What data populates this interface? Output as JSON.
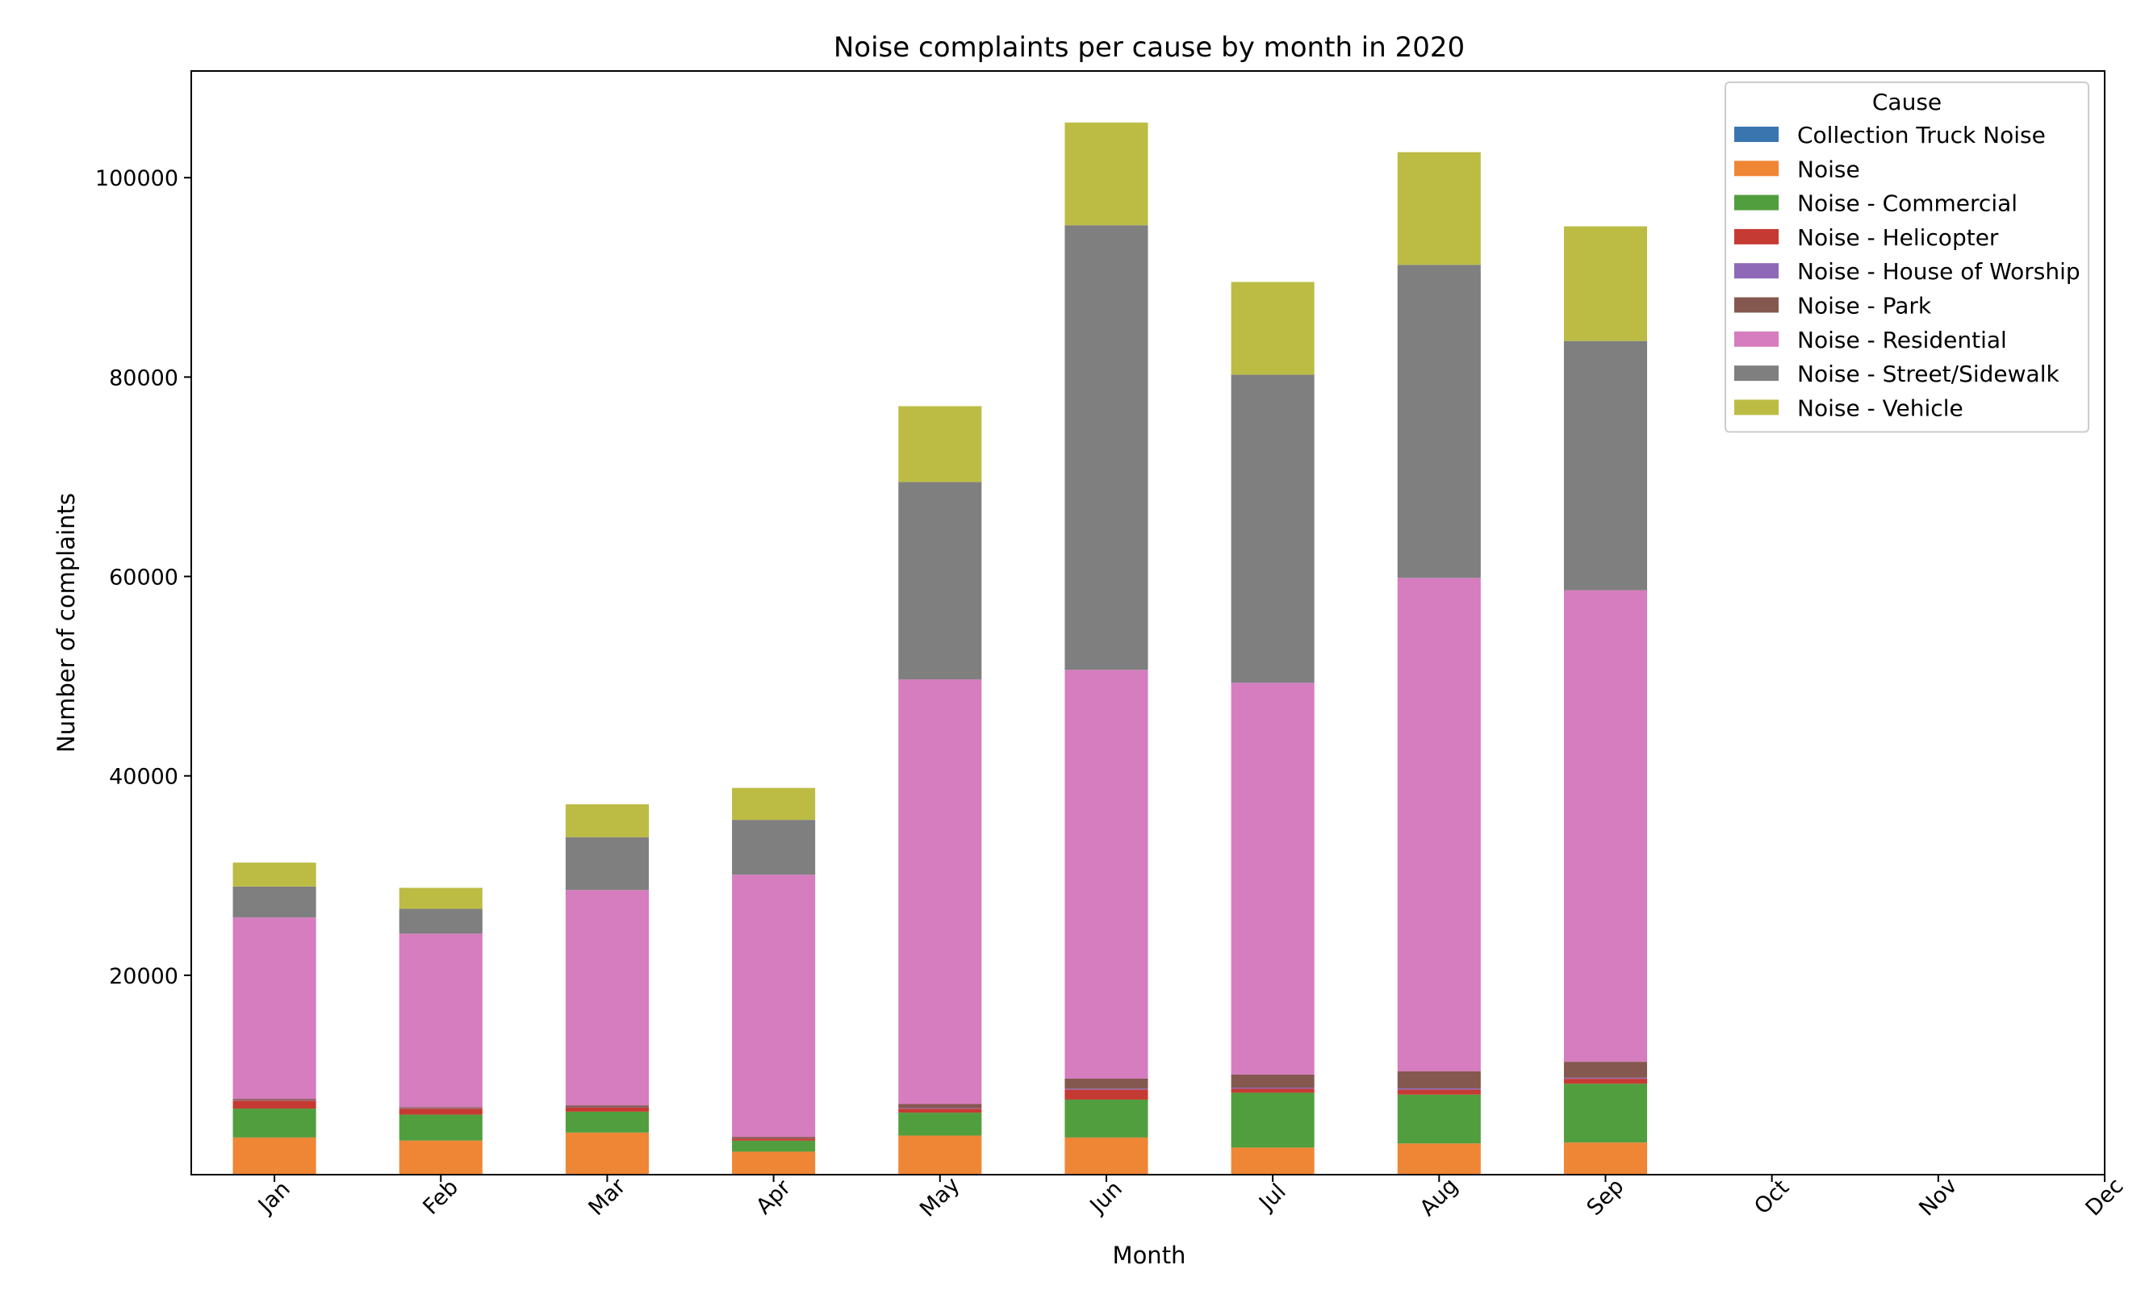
{
  "chart_data": {
    "type": "bar",
    "stacked": true,
    "title": "Noise complaints per cause by month in 2020",
    "xlabel": "Month",
    "ylabel": "Number of complaints",
    "categories": [
      "Jan",
      "Feb",
      "Mar",
      "Apr",
      "May",
      "Jun",
      "Jul",
      "Aug",
      "Sep",
      "Oct",
      "Nov",
      "Dec"
    ],
    "ylim": [
      0,
      110700
    ],
    "yticks": [
      20000,
      40000,
      60000,
      80000,
      100000
    ],
    "ytick_labels": [
      "20000",
      "40000",
      "60000",
      "80000",
      "100000"
    ],
    "legend_title": "Cause",
    "legend_position": "top-right",
    "grid": false,
    "series": [
      {
        "name": "Collection Truck Noise",
        "color": "#3a75af",
        "values": [
          30,
          20,
          20,
          10,
          20,
          30,
          20,
          30,
          20,
          0,
          0,
          0
        ]
      },
      {
        "name": "Noise",
        "color": "#ef8636",
        "values": [
          3700,
          3400,
          4200,
          2300,
          3900,
          3700,
          2700,
          3100,
          3200,
          0,
          0,
          0
        ]
      },
      {
        "name": "Noise - Commercial",
        "color": "#519e3e",
        "values": [
          2900,
          2600,
          2100,
          1100,
          2300,
          3800,
          5500,
          4900,
          5900,
          0,
          0,
          0
        ]
      },
      {
        "name": "Noise - Helicopter",
        "color": "#c53a32",
        "values": [
          800,
          600,
          400,
          200,
          400,
          1000,
          400,
          500,
          500,
          0,
          0,
          0
        ]
      },
      {
        "name": "Noise - House of Worship",
        "color": "#8d69b8",
        "values": [
          40,
          30,
          30,
          10,
          60,
          100,
          120,
          130,
          100,
          0,
          0,
          0
        ]
      },
      {
        "name": "Noise - Park",
        "color": "#84584e",
        "values": [
          130,
          120,
          200,
          170,
          400,
          1000,
          1300,
          1700,
          1600,
          0,
          0,
          0
        ]
      },
      {
        "name": "Noise - Residential",
        "color": "#d57dbe",
        "values": [
          18200,
          17400,
          21600,
          26300,
          42600,
          41000,
          39300,
          49500,
          47300,
          0,
          0,
          0
        ]
      },
      {
        "name": "Noise - Street/Sidewalk",
        "color": "#7f7f7f",
        "values": [
          3100,
          2500,
          5300,
          5500,
          19800,
          44600,
          30900,
          31400,
          25000,
          0,
          0,
          0
        ]
      },
      {
        "name": "Noise - Vehicle",
        "color": "#bcbc45",
        "values": [
          2400,
          2100,
          3300,
          3200,
          7600,
          10300,
          9300,
          11300,
          11500,
          0,
          0,
          0
        ]
      }
    ]
  }
}
